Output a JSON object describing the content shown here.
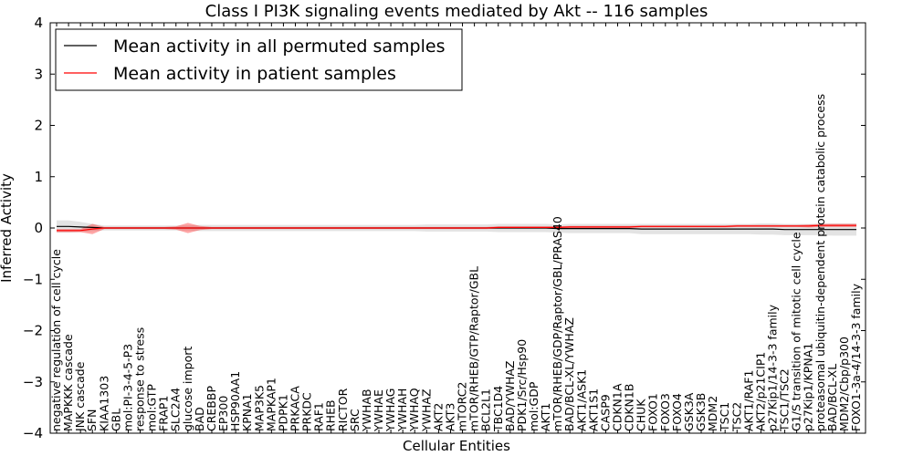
{
  "chart_data": {
    "type": "line",
    "title": "Class I PI3K signaling events mediated by Akt -- 116 samples",
    "xlabel": "Cellular Entities",
    "ylabel": "Inferred Activity",
    "ylim": [
      -4,
      4
    ],
    "yticks": [
      4,
      3,
      2,
      1,
      0,
      -1,
      -2,
      -3,
      -4
    ],
    "ytick_labels": [
      "4",
      "3",
      "2",
      "1",
      "0",
      "−1",
      "−2",
      "−3",
      "−4"
    ],
    "grid": false,
    "legend_position": "top-left",
    "categories": [
      "negative regulation of cell cycle",
      "MAPKKK cascade",
      "JNK cascade",
      "SFN",
      "KIAA1303",
      "GBL",
      "mol:PI-3-4-5-P3",
      "response to stress",
      "mol:GTP",
      "FRAP1",
      "SLC2A4",
      "glucose import",
      "BAD",
      "CREBBP",
      "EP300",
      "HSP90AA1",
      "KPNA1",
      "MAP3K5",
      "MAPKAP1",
      "PDPK1",
      "PRKACA",
      "PRKDC",
      "RAF1",
      "RHEB",
      "RICTOR",
      "SRC",
      "YWHAB",
      "YWHAE",
      "YWHAG",
      "YWHAH",
      "YWHAQ",
      "YWHAZ",
      "AKT2",
      "AKT3",
      "mTORC2",
      "mTOR/RHEB/GTP/Raptor/GBL",
      "BCL2L1",
      "TBC1D4",
      "BAD/YWHAZ",
      "PDK1/Src/Hsp90",
      "mol:GDP",
      "AKT1",
      "mTOR/RHEB/GDP/Raptor/GBL/PRAS40",
      "BAD/BCL-XL/YWHAZ",
      "AKT1/ASK1",
      "AKT1S1",
      "CASP9",
      "CDKN1A",
      "CDKN1B",
      "CHUK",
      "FOXO1",
      "FOXO3",
      "FOXO4",
      "GSK3A",
      "GSK3B",
      "MDM2",
      "TSC1",
      "TSC2",
      "AKT1/RAF1",
      "AKT2/p21CIP1",
      "p27Kip1/14-3-3 family",
      "TSC1/TSC2",
      "G1/S transition of mitotic cell cycle",
      "p27Kip1/KPNA1",
      "proteasomal ubiquitin-dependent protein catabolic process",
      "BAD/BCL-XL",
      "MDM2/Cbp/p300",
      "FOXO1-3a-4/14-3-3 family"
    ],
    "series": [
      {
        "name": "Mean activity in all permuted samples",
        "color": "#000000",
        "values": [
          0.03,
          0.03,
          0.02,
          0.01,
          0.0,
          0.0,
          0.0,
          0.0,
          0.0,
          0.0,
          0.0,
          0.0,
          0.0,
          0.0,
          0.0,
          0.0,
          0.0,
          0.0,
          0.0,
          0.0,
          0.0,
          0.0,
          0.0,
          0.0,
          0.0,
          0.0,
          0.0,
          0.0,
          0.0,
          0.0,
          0.0,
          0.0,
          0.0,
          0.0,
          0.0,
          0.0,
          0.0,
          0.0,
          0.0,
          0.0,
          0.0,
          0.0,
          -0.01,
          -0.01,
          -0.01,
          -0.01,
          -0.01,
          -0.01,
          -0.01,
          -0.02,
          -0.02,
          -0.02,
          -0.02,
          -0.02,
          -0.02,
          -0.02,
          -0.02,
          -0.02,
          -0.02,
          -0.02,
          -0.02,
          -0.03,
          -0.03,
          -0.03,
          -0.03,
          -0.03,
          -0.03,
          -0.03
        ],
        "band": [
          0.12,
          0.12,
          0.1,
          0.07,
          0.05,
          0.05,
          0.05,
          0.05,
          0.05,
          0.05,
          0.05,
          0.05,
          0.06,
          0.06,
          0.06,
          0.06,
          0.06,
          0.06,
          0.06,
          0.06,
          0.06,
          0.06,
          0.06,
          0.06,
          0.06,
          0.06,
          0.06,
          0.06,
          0.06,
          0.06,
          0.06,
          0.07,
          0.07,
          0.07,
          0.07,
          0.07,
          0.07,
          0.08,
          0.08,
          0.08,
          0.08,
          0.08,
          0.08,
          0.09,
          0.09,
          0.09,
          0.09,
          0.09,
          0.09,
          0.1,
          0.1,
          0.1,
          0.1,
          0.1,
          0.1,
          0.1,
          0.1,
          0.1,
          0.1,
          0.11,
          0.11,
          0.11,
          0.11,
          0.11,
          0.11,
          0.12,
          0.12,
          0.12
        ]
      },
      {
        "name": "Mean activity in patient samples",
        "color": "#ff0000",
        "values": [
          -0.05,
          -0.05,
          -0.05,
          -0.02,
          0.0,
          0.0,
          0.0,
          0.0,
          0.0,
          0.0,
          0.0,
          0.0,
          0.0,
          0.0,
          0.0,
          0.0,
          0.0,
          0.0,
          0.0,
          0.0,
          0.0,
          0.0,
          0.0,
          0.0,
          0.0,
          0.0,
          0.0,
          0.0,
          0.0,
          0.0,
          0.0,
          0.0,
          0.0,
          0.0,
          0.0,
          0.0,
          0.0,
          0.01,
          0.01,
          0.01,
          0.01,
          0.01,
          0.01,
          0.02,
          0.02,
          0.02,
          0.02,
          0.02,
          0.02,
          0.03,
          0.03,
          0.03,
          0.03,
          0.03,
          0.03,
          0.03,
          0.03,
          0.04,
          0.04,
          0.04,
          0.04,
          0.04,
          0.04,
          0.04,
          0.05,
          0.05,
          0.05,
          0.05
        ],
        "band": [
          0.03,
          0.03,
          0.03,
          0.1,
          0.02,
          0.02,
          0.02,
          0.02,
          0.02,
          0.02,
          0.03,
          0.1,
          0.04,
          0.02,
          0.02,
          0.02,
          0.02,
          0.02,
          0.02,
          0.02,
          0.02,
          0.02,
          0.02,
          0.02,
          0.02,
          0.02,
          0.02,
          0.02,
          0.02,
          0.02,
          0.02,
          0.02,
          0.02,
          0.02,
          0.02,
          0.02,
          0.02,
          0.02,
          0.02,
          0.02,
          0.02,
          0.02,
          0.02,
          0.02,
          0.02,
          0.02,
          0.02,
          0.02,
          0.02,
          0.02,
          0.02,
          0.02,
          0.02,
          0.02,
          0.02,
          0.02,
          0.02,
          0.02,
          0.02,
          0.02,
          0.02,
          0.02,
          0.02,
          0.03,
          0.03,
          0.03,
          0.03,
          0.03
        ]
      }
    ]
  }
}
